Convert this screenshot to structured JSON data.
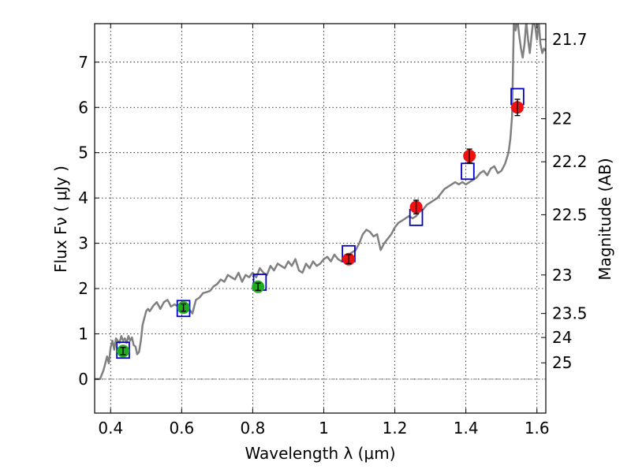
{
  "chart_data": {
    "type": "line",
    "xlabel": "Wavelength  λ (μm)",
    "ylabel": "Flux  Fν  ( μJy )",
    "ylabel_right": "Magnitude (AB)",
    "xlim": [
      0.355,
      1.625
    ],
    "ylim": [
      -0.75,
      7.85
    ],
    "grid": true,
    "legend": "none",
    "x_ticks": [
      0.4,
      0.6,
      0.8,
      1.0,
      1.2,
      1.4,
      1.6
    ],
    "x_tick_labels": [
      "0.4",
      "0.6",
      "0.8",
      "1",
      "1.2",
      "1.4",
      "1.6"
    ],
    "y_ticks": [
      0,
      1,
      2,
      3,
      4,
      5,
      6,
      7
    ],
    "y_tick_labels": [
      "0",
      "1",
      "2",
      "3",
      "4",
      "5",
      "6",
      "7"
    ],
    "right_ticks": [
      {
        "label": "21.7",
        "flux": 7.5
      },
      {
        "label": "22",
        "flux": 5.75
      },
      {
        "label": "22.2",
        "flux": 4.8
      },
      {
        "label": "22.5",
        "flux": 3.63
      },
      {
        "label": "23",
        "flux": 2.3
      },
      {
        "label": "23.5",
        "flux": 1.45
      },
      {
        "label": "24",
        "flux": 0.92
      },
      {
        "label": "25",
        "flux": 0.36
      }
    ],
    "sed_model": {
      "color": "#808080",
      "x": [
        0.355,
        0.37,
        0.38,
        0.39,
        0.395,
        0.4,
        0.405,
        0.41,
        0.415,
        0.42,
        0.425,
        0.43,
        0.435,
        0.44,
        0.445,
        0.45,
        0.455,
        0.46,
        0.465,
        0.47,
        0.475,
        0.48,
        0.485,
        0.49,
        0.5,
        0.505,
        0.51,
        0.52,
        0.53,
        0.54,
        0.55,
        0.56,
        0.565,
        0.57,
        0.58,
        0.59,
        0.6,
        0.61,
        0.62,
        0.63,
        0.64,
        0.65,
        0.66,
        0.67,
        0.68,
        0.69,
        0.7,
        0.71,
        0.72,
        0.73,
        0.74,
        0.75,
        0.76,
        0.77,
        0.78,
        0.79,
        0.8,
        0.81,
        0.82,
        0.83,
        0.84,
        0.85,
        0.86,
        0.87,
        0.88,
        0.89,
        0.9,
        0.91,
        0.92,
        0.93,
        0.94,
        0.95,
        0.96,
        0.97,
        0.98,
        0.99,
        1.0,
        1.01,
        1.02,
        1.03,
        1.04,
        1.05,
        1.06,
        1.07,
        1.08,
        1.09,
        1.1,
        1.11,
        1.12,
        1.13,
        1.14,
        1.15,
        1.16,
        1.17,
        1.18,
        1.19,
        1.2,
        1.21,
        1.22,
        1.23,
        1.24,
        1.25,
        1.26,
        1.27,
        1.28,
        1.29,
        1.3,
        1.31,
        1.32,
        1.33,
        1.34,
        1.35,
        1.36,
        1.37,
        1.38,
        1.39,
        1.4,
        1.41,
        1.42,
        1.43,
        1.44,
        1.45,
        1.46,
        1.47,
        1.48,
        1.49,
        1.5,
        1.51,
        1.52,
        1.525,
        1.53,
        1.535,
        1.54,
        1.545,
        1.55,
        1.555,
        1.56,
        1.565,
        1.57,
        1.575,
        1.58,
        1.585,
        1.59,
        1.595,
        1.6,
        1.605,
        1.61,
        1.615,
        1.62,
        1.625
      ],
      "y": [
        0.0,
        0.0,
        0.2,
        0.5,
        0.35,
        0.7,
        0.85,
        0.65,
        0.9,
        0.85,
        0.8,
        0.95,
        0.85,
        0.9,
        0.8,
        0.95,
        0.85,
        0.92,
        0.75,
        0.72,
        0.55,
        0.6,
        0.85,
        1.2,
        1.5,
        1.55,
        1.5,
        1.62,
        1.7,
        1.55,
        1.7,
        1.75,
        1.68,
        1.6,
        1.65,
        1.6,
        1.55,
        1.5,
        1.55,
        1.45,
        1.75,
        1.8,
        1.9,
        1.92,
        1.95,
        2.05,
        2.1,
        2.2,
        2.15,
        2.3,
        2.25,
        2.2,
        2.35,
        2.15,
        2.3,
        2.25,
        2.35,
        2.25,
        2.45,
        2.35,
        2.3,
        2.5,
        2.4,
        2.55,
        2.5,
        2.45,
        2.6,
        2.5,
        2.65,
        2.4,
        2.35,
        2.55,
        2.45,
        2.6,
        2.5,
        2.55,
        2.65,
        2.7,
        2.6,
        2.75,
        2.65,
        2.6,
        2.7,
        2.75,
        2.8,
        2.85,
        3.0,
        3.2,
        3.3,
        3.25,
        3.15,
        3.2,
        2.85,
        3.0,
        3.1,
        3.2,
        3.35,
        3.45,
        3.5,
        3.55,
        3.6,
        3.55,
        3.6,
        3.7,
        3.75,
        3.85,
        3.9,
        3.95,
        4.0,
        4.1,
        4.2,
        4.25,
        4.3,
        4.35,
        4.3,
        4.35,
        4.3,
        4.35,
        4.4,
        4.45,
        4.55,
        4.6,
        4.5,
        4.65,
        4.7,
        4.55,
        4.6,
        4.75,
        5.0,
        5.3,
        5.8,
        7.9,
        7.7,
        7.95,
        7.6,
        7.3,
        7.1,
        7.4,
        7.9,
        7.5,
        7.2,
        7.6,
        7.95,
        7.8,
        7.5,
        7.9,
        7.4,
        7.2,
        7.3,
        7.25
      ]
    },
    "model_bands": {
      "color": "#0000cc",
      "points": [
        {
          "x": 0.435,
          "y": 0.64,
          "width": 0.035
        },
        {
          "x": 0.605,
          "y": 1.56,
          "width": 0.035
        },
        {
          "x": 0.82,
          "y": 2.14,
          "width": 0.035
        },
        {
          "x": 1.07,
          "y": 2.77,
          "width": 0.035
        },
        {
          "x": 1.26,
          "y": 3.57,
          "width": 0.035
        },
        {
          "x": 1.405,
          "y": 4.59,
          "width": 0.035
        },
        {
          "x": 1.545,
          "y": 6.24,
          "width": 0.035
        }
      ]
    },
    "observed_optical": {
      "color": "#22aa22",
      "points": [
        {
          "x": 0.435,
          "y": 0.62,
          "err": 0.08
        },
        {
          "x": 0.605,
          "y": 1.58,
          "err": 0.08
        },
        {
          "x": 0.815,
          "y": 2.04,
          "err": 0.08
        }
      ]
    },
    "observed_nir": {
      "color": "#ee1111",
      "points": [
        {
          "x": 1.07,
          "y": 2.65,
          "err": 0.1
        },
        {
          "x": 1.26,
          "y": 3.8,
          "err": 0.15
        },
        {
          "x": 1.41,
          "y": 4.93,
          "err": 0.15
        },
        {
          "x": 1.545,
          "y": 6.0,
          "err": 0.18
        }
      ]
    },
    "zero_line": {
      "y": 0,
      "color": "#888888"
    }
  }
}
